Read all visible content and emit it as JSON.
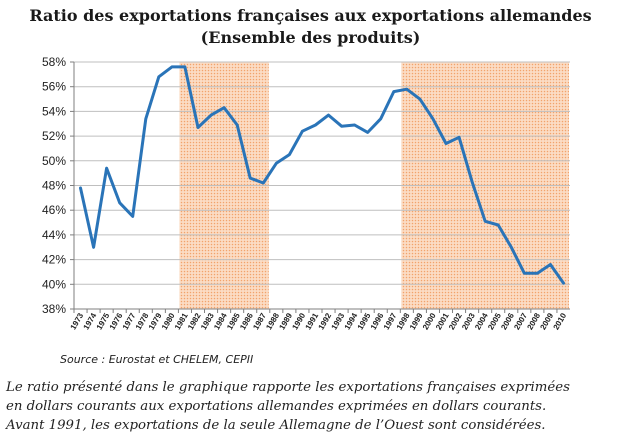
{
  "title_line1": "Ratio des exportations françaises aux exportations allemandes",
  "title_line2": "(Ensemble des produits)",
  "source": "Source : Eurostat et CHELEM, CEPII",
  "note_lines": [
    "Le ratio présenté dans le graphique rapporte les exportations françaises exprimées",
    "en dollars courants aux exportations allemandes exprimées en dollars courants.",
    "Avant 1991, les exportations de la seule Allemagne de l’Ouest sont considérées."
  ],
  "colors": {
    "line": "#2a74b8",
    "shade_fill": "#fbdcc4",
    "shade_dots": "#f2a36b",
    "grid": "#bfbfbf",
    "axis": "#7f7f7f"
  },
  "chart_data": {
    "type": "line",
    "title": "Ratio des exportations françaises aux exportations allemandes (Ensemble des produits)",
    "xlabel": "",
    "ylabel": "",
    "ylim": [
      38,
      58
    ],
    "yticks": [
      "38%",
      "40%",
      "42%",
      "44%",
      "46%",
      "48%",
      "50%",
      "52%",
      "54%",
      "56%",
      "58%"
    ],
    "ytick_values": [
      38,
      40,
      42,
      44,
      46,
      48,
      50,
      52,
      54,
      56,
      58
    ],
    "grid": true,
    "categories": [
      "1973",
      "1974",
      "1975",
      "1976",
      "1977",
      "1978",
      "1979",
      "1980",
      "1981",
      "1982",
      "1983",
      "1984",
      "1985",
      "1986",
      "1987",
      "1988",
      "1989",
      "1990",
      "1991",
      "1992",
      "1993",
      "1994",
      "1995",
      "1996",
      "1997",
      "1998",
      "1999",
      "2000",
      "2001",
      "2002",
      "2003",
      "2004",
      "2005",
      "2006",
      "2007",
      "2008",
      "2009",
      "2010"
    ],
    "series": [
      {
        "values": [
          47.8,
          43.0,
          49.4,
          46.6,
          45.5,
          53.4,
          56.8,
          57.6,
          57.6,
          52.7,
          53.7,
          54.3,
          52.9,
          48.6,
          48.2,
          49.8,
          50.5,
          52.4,
          52.9,
          53.7,
          52.8,
          52.9,
          52.3,
          53.4,
          55.6,
          55.8,
          55.0,
          53.4,
          51.4,
          51.9,
          48.3,
          45.1,
          44.8,
          43.0,
          40.9,
          40.9,
          41.6,
          40.1
        ]
      }
    ],
    "shaded_periods": [
      [
        "1981",
        "1987"
      ],
      [
        "1998",
        "2010"
      ]
    ]
  }
}
